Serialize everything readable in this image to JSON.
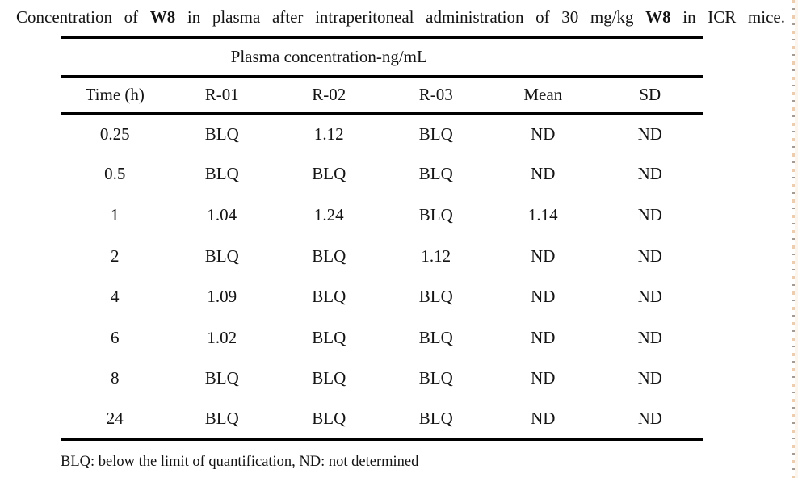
{
  "caption": {
    "part1": "Concentration of ",
    "bold1": "W8",
    "part2": " in plasma after intraperitoneal administration of 30 mg/kg ",
    "bold2": "W8",
    "part3": " in ICR mice."
  },
  "table": {
    "group_header": "Plasma concentration-ng/mL",
    "columns": [
      "Time (h)",
      "R-01",
      "R-02",
      "R-03",
      "Mean",
      "SD"
    ],
    "rows": [
      [
        "0.25",
        "BLQ",
        "1.12",
        "BLQ",
        "ND",
        "ND"
      ],
      [
        "0.5",
        "BLQ",
        "BLQ",
        "BLQ",
        "ND",
        "ND"
      ],
      [
        "1",
        "1.04",
        "1.24",
        "BLQ",
        "1.14",
        "ND"
      ],
      [
        "2",
        "BLQ",
        "BLQ",
        "1.12",
        "ND",
        "ND"
      ],
      [
        "4",
        "1.09",
        "BLQ",
        "BLQ",
        "ND",
        "ND"
      ],
      [
        "6",
        "1.02",
        "BLQ",
        "BLQ",
        "ND",
        "ND"
      ],
      [
        "8",
        "BLQ",
        "BLQ",
        "BLQ",
        "ND",
        "ND"
      ],
      [
        "24",
        "BLQ",
        "BLQ",
        "BLQ",
        "ND",
        "ND"
      ]
    ],
    "footnote": "BLQ: below the limit of quantification, ND: not determined"
  },
  "colors": {
    "text": "#141414",
    "rule": "#000000",
    "scan_edge_orange": "#e0a46c"
  }
}
